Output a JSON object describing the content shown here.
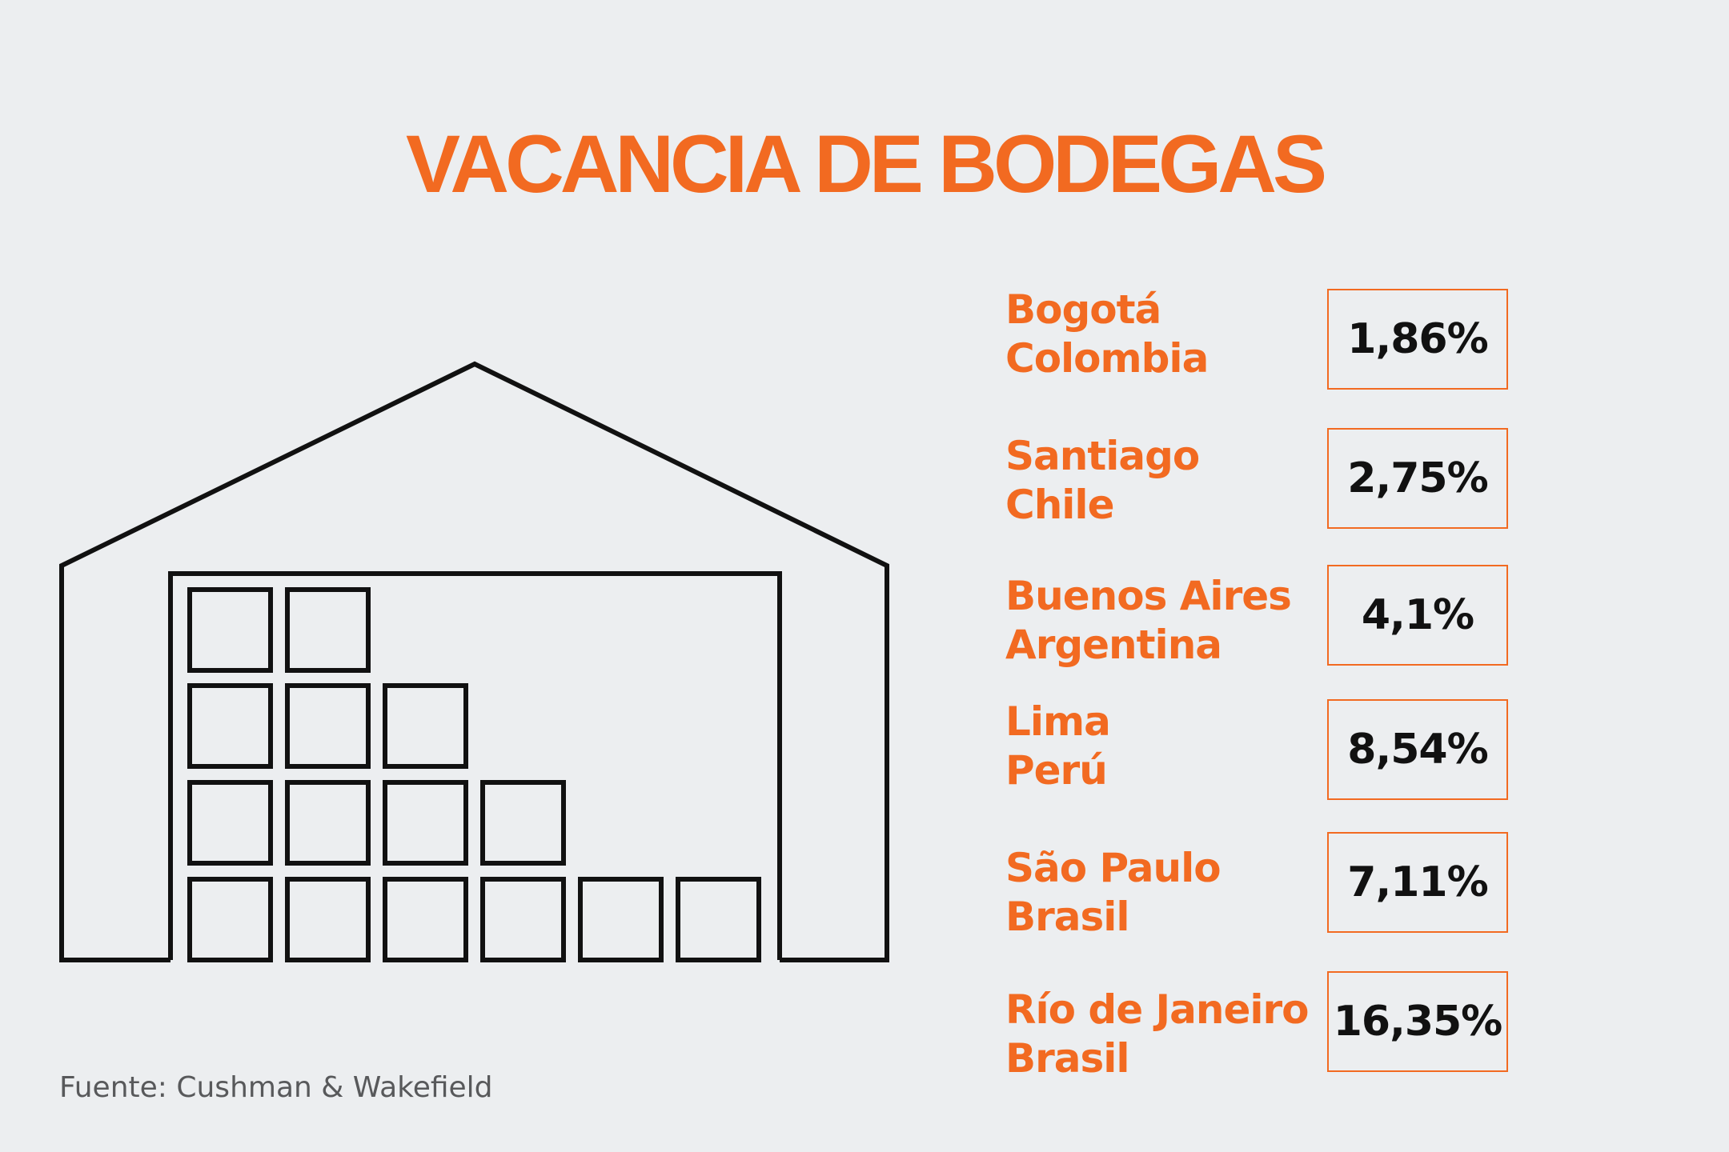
{
  "title": "VACANCIA DE BODEGAS",
  "source": "Fuente: Cushman & Wakefield",
  "icon": "warehouse-boxes-icon",
  "colors": {
    "accent": "#f26a21",
    "background": "#eceef0",
    "text": "#111111",
    "source_text": "#58595b"
  },
  "rows": [
    {
      "city": "Bogotá",
      "country": "Colombia",
      "value": "1,86%"
    },
    {
      "city": "Santiago",
      "country": "Chile",
      "value": "2,75%"
    },
    {
      "city": "Buenos Aires",
      "country": "Argentina",
      "value": "4,1%"
    },
    {
      "city": "Lima",
      "country": "Perú",
      "value": "8,54%"
    },
    {
      "city": "São Paulo",
      "country": "Brasil",
      "value": "7,11%"
    },
    {
      "city": "Río de Janeiro",
      "country": "Brasil",
      "value": "16,35%"
    }
  ]
}
